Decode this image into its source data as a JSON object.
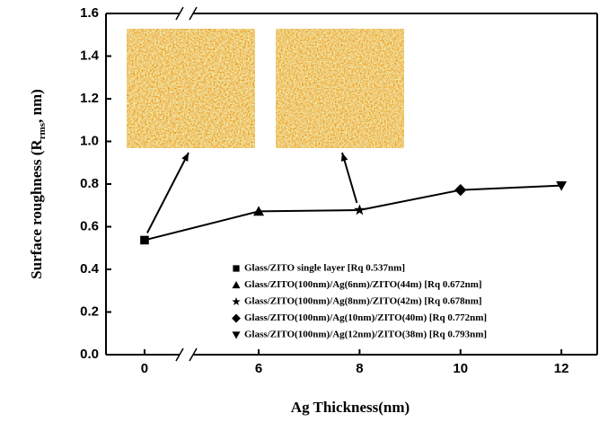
{
  "chart_data": {
    "type": "line",
    "xlabel": "Ag Thickness(nm)",
    "ylabel": "Surface roughness (R",
    "ylabel_sub": "rms",
    "ylabel_end": ", nm)",
    "x": [
      0,
      6,
      8,
      10,
      12
    ],
    "values": [
      0.537,
      0.672,
      0.678,
      0.772,
      0.793
    ],
    "markers": [
      "square",
      "triangle-up",
      "star",
      "diamond",
      "triangle-down"
    ],
    "legend": [
      "Glass/ZITO single layer [Rq 0.537nm]",
      "Glass/ZITO(100nm)/Ag(6nm)/ZITO(44m) [Rq 0.672nm]",
      "Glass/ZITO(100nm)/Ag(8nm)/ZITO(42m) [Rq 0.678nm]",
      "Glass/ZITO(100nm)/Ag(10nm)/ZITO(40m) [Rq 0.772nm]",
      "Glass/ZITO(100nm)/Ag(12nm)/ZITO(38m) [Rq 0.793nm]"
    ],
    "color": "#000000",
    "xsegments": [
      [
        -0.77,
        0.7
      ],
      [
        4.7,
        12.71
      ]
    ],
    "xticks": [
      0,
      6,
      8,
      10,
      12
    ],
    "ylim": [
      0,
      1.6
    ],
    "yticks": [
      {
        "value": 0,
        "label": "0.0"
      },
      0.2,
      0.4,
      0.6,
      0.8,
      {
        "value": 1,
        "label": "1.0"
      },
      1.2,
      1.4,
      1.6
    ]
  }
}
